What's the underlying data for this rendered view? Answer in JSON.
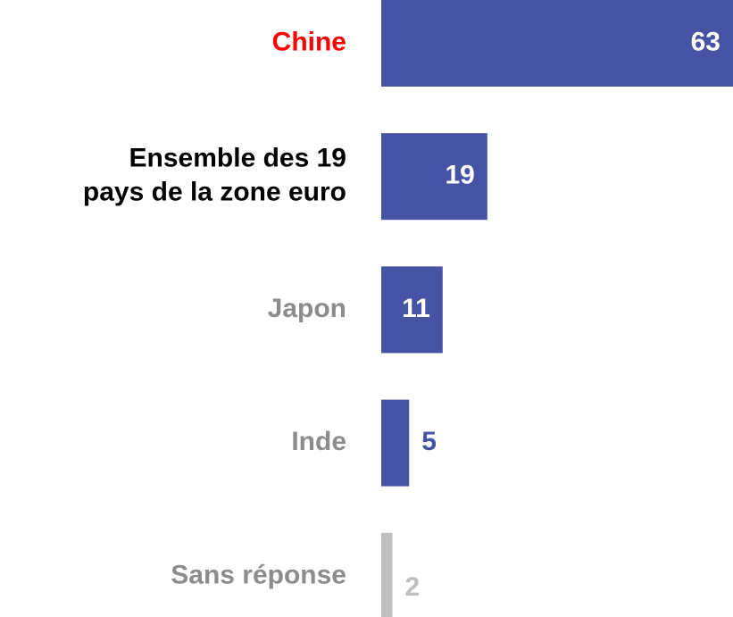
{
  "chart_data": {
    "type": "bar",
    "orientation": "horizontal",
    "categories": [
      "Chine",
      "Ensemble des 19\npays de la zone euro",
      "Japon",
      "Inde",
      "Sans réponse"
    ],
    "values": [
      63,
      19,
      11,
      5,
      2
    ],
    "colors": [
      "#4652a3",
      "#4652a3",
      "#4652a3",
      "#4652a3",
      "#bfbfbf"
    ],
    "label_colors": [
      "#ff0000",
      "#000000",
      "#8c8c8c",
      "#8c8c8c",
      "#8c8c8c"
    ],
    "xlim": [
      0,
      63
    ]
  }
}
